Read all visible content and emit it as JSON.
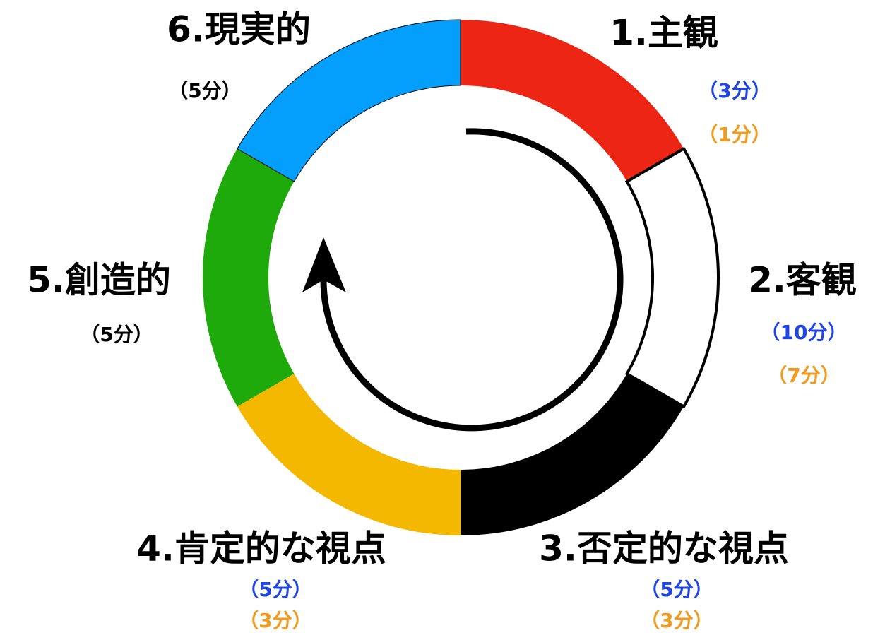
{
  "segments": [
    {
      "label": "1.主観",
      "times": [
        {
          "text": "（3分）",
          "color": "#1f45e6"
        },
        {
          "text": "（1分）",
          "color": "#f29a1c"
        }
      ]
    },
    {
      "label": "2.客観",
      "times": [
        {
          "text": "（10分）",
          "color": "#1f45e6"
        },
        {
          "text": "（7分）",
          "color": "#f29a1c"
        }
      ]
    },
    {
      "label": "3.否定的な視点",
      "times": [
        {
          "text": "（5分）",
          "color": "#1f45e6"
        },
        {
          "text": "（3分）",
          "color": "#f29a1c"
        }
      ]
    },
    {
      "label": "4.肯定的な視点",
      "times": [
        {
          "text": "（5分）",
          "color": "#1f45e6"
        },
        {
          "text": "（3分）",
          "color": "#f29a1c"
        }
      ]
    },
    {
      "label": "5.創造的",
      "times": [
        {
          "text": "（5分）",
          "color": "#000000"
        }
      ]
    },
    {
      "label": "6.現実的",
      "times": [
        {
          "text": "（5分）",
          "color": "#000000"
        }
      ]
    }
  ]
}
